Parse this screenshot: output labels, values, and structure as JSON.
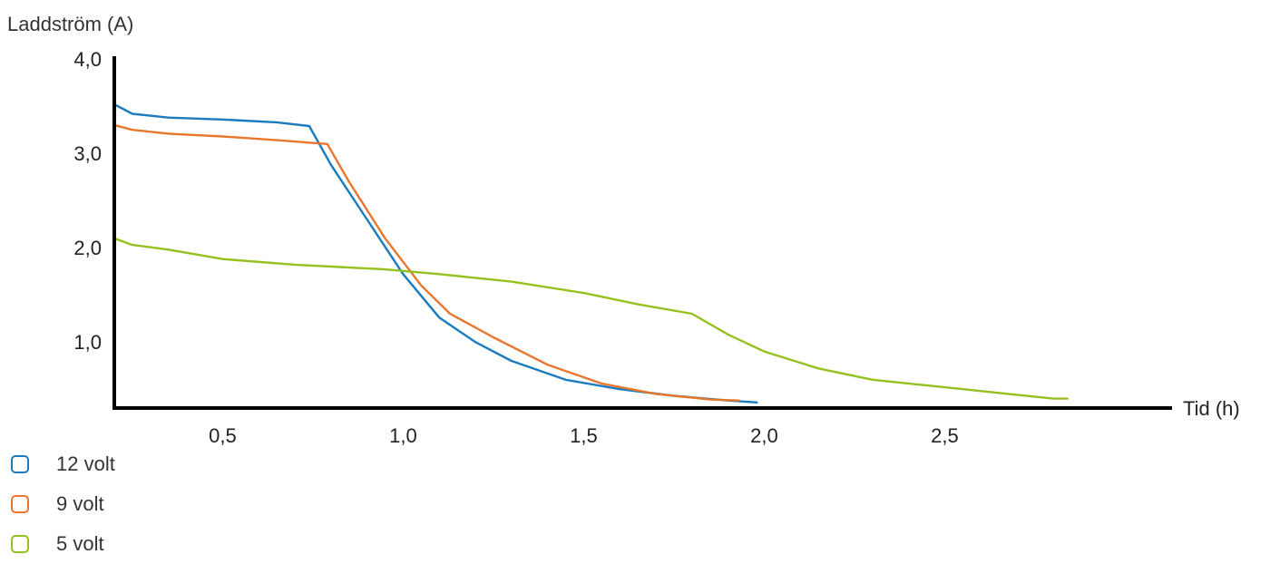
{
  "chart_data": {
    "type": "line",
    "ylabel": "Laddström (A)",
    "xlabel": "Tid (h)",
    "xlim": [
      0.2,
      3.05
    ],
    "ylim": [
      0.3,
      4.0
    ],
    "x_ticks": [
      {
        "value": 0.5,
        "label": "0,5"
      },
      {
        "value": 1.0,
        "label": "1,0"
      },
      {
        "value": 1.5,
        "label": "1,5"
      },
      {
        "value": 2.0,
        "label": "2,0"
      },
      {
        "value": 2.5,
        "label": "2,5"
      }
    ],
    "y_ticks": [
      {
        "value": 1.0,
        "label": "1,0"
      },
      {
        "value": 2.0,
        "label": "2,0"
      },
      {
        "value": 3.0,
        "label": "3,0"
      },
      {
        "value": 4.0,
        "label": "4,0"
      }
    ],
    "grid": false,
    "legend_position": "bottom-left",
    "series": [
      {
        "name": "12 volt",
        "color": "#1a7bbf",
        "points": [
          [
            0.2,
            3.52
          ],
          [
            0.25,
            3.42
          ],
          [
            0.35,
            3.38
          ],
          [
            0.5,
            3.36
          ],
          [
            0.65,
            3.33
          ],
          [
            0.74,
            3.29
          ],
          [
            0.8,
            2.88
          ],
          [
            0.9,
            2.3
          ],
          [
            1.0,
            1.72
          ],
          [
            1.1,
            1.26
          ],
          [
            1.2,
            1.0
          ],
          [
            1.3,
            0.8
          ],
          [
            1.45,
            0.6
          ],
          [
            1.6,
            0.5
          ],
          [
            1.75,
            0.43
          ],
          [
            1.9,
            0.38
          ],
          [
            1.98,
            0.36
          ]
        ]
      },
      {
        "name": "9 volt",
        "color": "#e8762c",
        "points": [
          [
            0.2,
            3.3
          ],
          [
            0.25,
            3.25
          ],
          [
            0.35,
            3.21
          ],
          [
            0.5,
            3.18
          ],
          [
            0.65,
            3.14
          ],
          [
            0.79,
            3.1
          ],
          [
            0.85,
            2.7
          ],
          [
            0.95,
            2.1
          ],
          [
            1.05,
            1.6
          ],
          [
            1.13,
            1.3
          ],
          [
            1.25,
            1.05
          ],
          [
            1.4,
            0.76
          ],
          [
            1.55,
            0.56
          ],
          [
            1.7,
            0.45
          ],
          [
            1.85,
            0.39
          ],
          [
            1.93,
            0.38
          ]
        ]
      },
      {
        "name": "5 volt",
        "color": "#94c120",
        "points": [
          [
            0.2,
            2.1
          ],
          [
            0.25,
            2.03
          ],
          [
            0.35,
            1.98
          ],
          [
            0.5,
            1.88
          ],
          [
            0.7,
            1.82
          ],
          [
            0.95,
            1.77
          ],
          [
            1.1,
            1.72
          ],
          [
            1.3,
            1.64
          ],
          [
            1.5,
            1.52
          ],
          [
            1.65,
            1.4
          ],
          [
            1.8,
            1.3
          ],
          [
            1.9,
            1.08
          ],
          [
            2.0,
            0.9
          ],
          [
            2.15,
            0.72
          ],
          [
            2.3,
            0.6
          ],
          [
            2.5,
            0.52
          ],
          [
            2.7,
            0.44
          ],
          [
            2.8,
            0.4
          ],
          [
            2.84,
            0.4
          ]
        ]
      }
    ]
  }
}
